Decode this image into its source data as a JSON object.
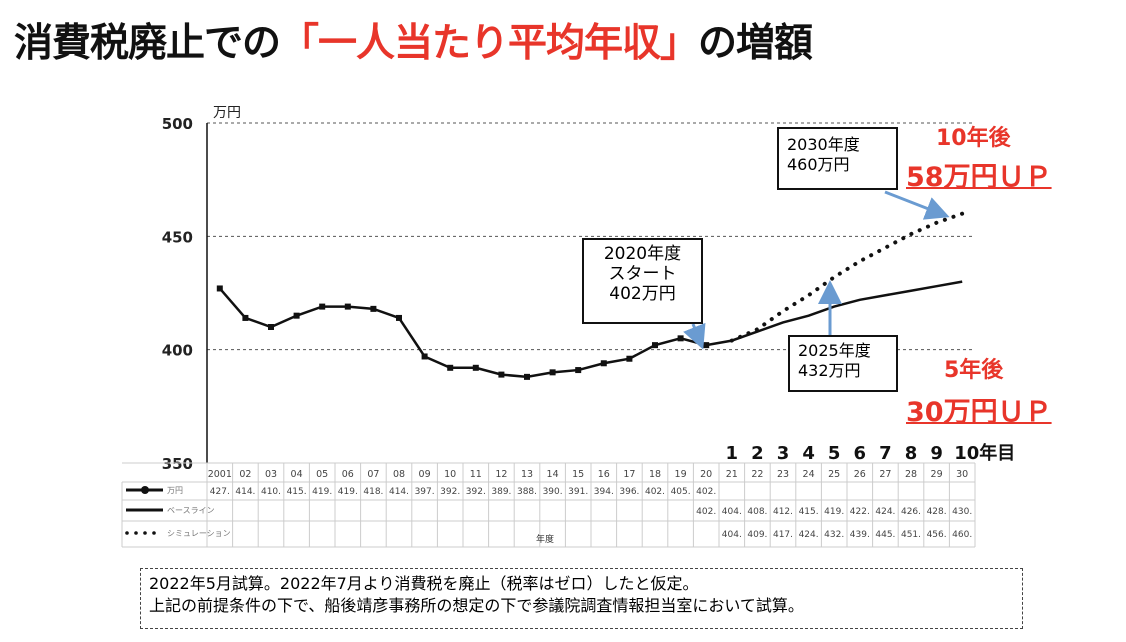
{
  "title": {
    "prefix": "消費税廃止での",
    "highlight": "「一人当たり平均年収」",
    "suffix": "の増額"
  },
  "colors": {
    "highlight": "#e8352a",
    "line": "#111111",
    "arrow": "#6a9bd1"
  },
  "chart_data": {
    "type": "line",
    "ylabel": "万円",
    "ylim": [
      350,
      500
    ],
    "yticks": [
      350,
      400,
      450,
      500
    ],
    "grid": "horizontal dashed",
    "xlabel": "年度",
    "categories": [
      "2001",
      "02",
      "03",
      "04",
      "05",
      "06",
      "07",
      "08",
      "09",
      "10",
      "11",
      "12",
      "13",
      "14",
      "15",
      "16",
      "17",
      "18",
      "19",
      "20",
      "21",
      "22",
      "23",
      "24",
      "25",
      "26",
      "27",
      "28",
      "29",
      "30"
    ],
    "year_counts": [
      "1",
      "2",
      "3",
      "4",
      "5",
      "6",
      "7",
      "8",
      "9",
      "10年目"
    ],
    "series": [
      {
        "name": "万円",
        "style": "line-markers",
        "values": [
          427,
          414,
          410,
          415,
          419,
          419,
          418,
          414,
          397,
          392,
          392,
          389,
          388,
          390,
          391,
          394,
          396,
          402,
          405,
          402,
          null,
          null,
          null,
          null,
          null,
          null,
          null,
          null,
          null,
          null
        ],
        "labels": [
          "427.",
          "414.",
          "410.",
          "415.",
          "419.",
          "419.",
          "418.",
          "414.",
          "397.",
          "392.",
          "392.",
          "389.",
          "388.",
          "390.",
          "391.",
          "394.",
          "396.",
          "402.",
          "405.",
          "402.",
          "",
          "",
          "",
          "",
          "",
          "",
          "",
          "",
          "",
          ""
        ]
      },
      {
        "name": "ベースライン",
        "style": "solid",
        "values": [
          null,
          null,
          null,
          null,
          null,
          null,
          null,
          null,
          null,
          null,
          null,
          null,
          null,
          null,
          null,
          null,
          null,
          null,
          null,
          402,
          404,
          408,
          412,
          415,
          419,
          422,
          424,
          426,
          428,
          430
        ],
        "labels": [
          "",
          "",
          "",
          "",
          "",
          "",
          "",
          "",
          "",
          "",
          "",
          "",
          "",
          "",
          "",
          "",
          "",
          "",
          "",
          "402.",
          "404.",
          "408.",
          "412.",
          "415.",
          "419.",
          "422.",
          "424.",
          "426.",
          "428.",
          "430."
        ]
      },
      {
        "name": "シミュレーション",
        "style": "dotted",
        "values": [
          null,
          null,
          null,
          null,
          null,
          null,
          null,
          null,
          null,
          null,
          null,
          null,
          null,
          null,
          null,
          null,
          null,
          null,
          null,
          402,
          404,
          409,
          417,
          424,
          432,
          439,
          445,
          451,
          456,
          460
        ],
        "labels": [
          "",
          "",
          "",
          "",
          "",
          "",
          "",
          "",
          "",
          "",
          "",
          "",
          "",
          "",
          "",
          "",
          "",
          "",
          "",
          "",
          "404.",
          "409.",
          "417.",
          "424.",
          "432.",
          "439.",
          "445.",
          "451.",
          "456.",
          "460."
        ]
      }
    ]
  },
  "annotations": {
    "start": [
      "2020年度",
      "スタート",
      "402万円"
    ],
    "y2025": [
      "2025年度",
      "432万円"
    ],
    "y2030": [
      "2030年度",
      "460万円"
    ],
    "ten_years": "10年後",
    "ten_up": "58万円ＵＰ",
    "five_years": "5年後",
    "five_up": "30万円ＵＰ"
  },
  "footnote": [
    "2022年5月試算。2022年7月より消費税を廃止（税率はゼロ）したと仮定。",
    "上記の前提条件の下で、船後靖彦事務所の想定の下で参議院調査情報担当室において試算。"
  ]
}
